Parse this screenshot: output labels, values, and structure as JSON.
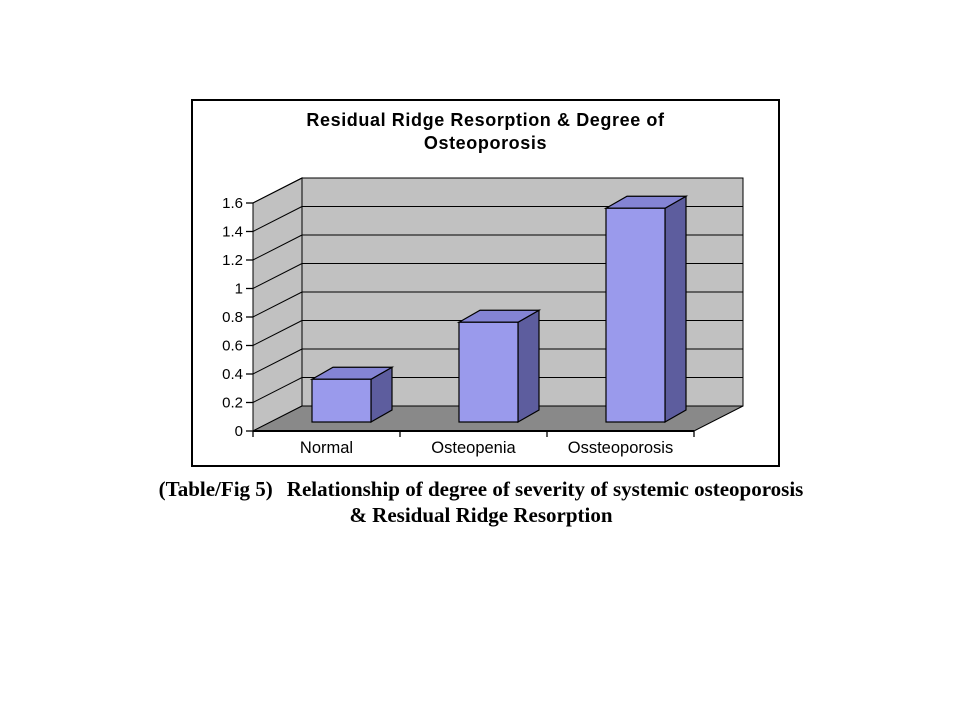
{
  "chart_data": {
    "type": "bar",
    "projection": "3d",
    "title": "Residual Ridge Resorption & Degree of Osteoporosis",
    "title_lines": [
      "Residual Ridge Resorption & Degree of",
      "Osteoporosis"
    ],
    "categories": [
      "Normal",
      "Osteopenia",
      "Ossteoporosis"
    ],
    "values": [
      0.3,
      0.7,
      1.5
    ],
    "ylim": [
      0,
      1.6
    ],
    "ytick_step": 0.2,
    "ytick_labels": [
      "0",
      "0.2",
      "0.4",
      "0.6",
      "0.8",
      "1",
      "1.2",
      "1.4",
      "1.6"
    ],
    "xlabel": "",
    "ylabel": "",
    "grid": true,
    "legend": false,
    "colors": {
      "bar_front": "#9A9AEC",
      "bar_top": "#8484D4",
      "bar_side": "#5D5D9E",
      "wall": "#C1C1C1",
      "floor": "#898989",
      "outline": "#000000",
      "text": "#000000"
    }
  },
  "caption": {
    "label": "(Table/Fig 5)",
    "text": "Relationship of degree of severity of systemic osteoporosis",
    "line2": "& Residual Ridge Resorption"
  }
}
